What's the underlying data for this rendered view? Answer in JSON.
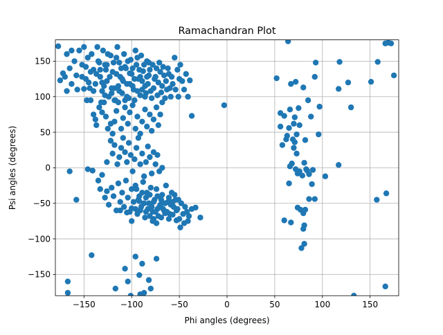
{
  "chart_data": {
    "type": "scatter",
    "title": "Ramachandran Plot",
    "xlabel": "Phi angles (degrees)",
    "ylabel": "Psi angles (degrees)",
    "xlim": [
      -180,
      180
    ],
    "ylim": [
      -180,
      180
    ],
    "xticks": [
      -150,
      -100,
      -50,
      0,
      50,
      100,
      150
    ],
    "yticks": [
      -150,
      -100,
      -50,
      0,
      50,
      100,
      150
    ],
    "grid": true,
    "marker_color": "#1f77b4",
    "points": [
      [
        -177,
        171
      ],
      [
        -175,
        123
      ],
      [
        -172,
        133
      ],
      [
        -170,
        128
      ],
      [
        -168,
        160
      ],
      [
        -165,
        140
      ],
      [
        -163,
        165
      ],
      [
        -160,
        150
      ],
      [
        -158,
        130
      ],
      [
        -155,
        165
      ],
      [
        -152,
        145
      ],
      [
        -150,
        170
      ],
      [
        -148,
        125
      ],
      [
        -146,
        155
      ],
      [
        -144,
        112
      ],
      [
        -142,
        160
      ],
      [
        -140,
        138
      ],
      [
        -138,
        118
      ],
      [
        -136,
        170
      ],
      [
        -135,
        150
      ],
      [
        -133,
        128
      ],
      [
        -131,
        108
      ],
      [
        -130,
        165
      ],
      [
        -128,
        145
      ],
      [
        -126,
        122
      ],
      [
        -124,
        100
      ],
      [
        -122,
        158
      ],
      [
        -120,
        135
      ],
      [
        -118,
        112
      ],
      [
        -117,
        95
      ],
      [
        -115,
        170
      ],
      [
        -113,
        148
      ],
      [
        -112,
        128
      ],
      [
        -110,
        105
      ],
      [
        -108,
        160
      ],
      [
        -106,
        140
      ],
      [
        -105,
        118
      ],
      [
        -103,
        98
      ],
      [
        -101,
        152
      ],
      [
        -100,
        132
      ],
      [
        -98,
        110
      ],
      [
        -96,
        165
      ],
      [
        -95,
        145
      ],
      [
        -93,
        125
      ],
      [
        -91,
        102
      ],
      [
        -90,
        158
      ],
      [
        -88,
        136
      ],
      [
        -86,
        115
      ],
      [
        -84,
        150
      ],
      [
        -82,
        130
      ],
      [
        -80,
        108
      ],
      [
        -78,
        145
      ],
      [
        -76,
        125
      ],
      [
        -74,
        140
      ],
      [
        -72,
        120
      ],
      [
        -70,
        135
      ],
      [
        -68,
        115
      ],
      [
        -66,
        130
      ],
      [
        -64,
        122
      ],
      [
        -62,
        140
      ],
      [
        -60,
        112
      ],
      [
        -58,
        128
      ],
      [
        -55,
        155
      ],
      [
        -52,
        138
      ],
      [
        -50,
        125
      ],
      [
        -168,
        108
      ],
      [
        -163,
        118
      ],
      [
        -157,
        110
      ],
      [
        -152,
        128
      ],
      [
        -148,
        142
      ],
      [
        -143,
        95
      ],
      [
        -140,
        108
      ],
      [
        -137,
        132
      ],
      [
        -134,
        148
      ],
      [
        -132,
        92
      ],
      [
        -129,
        115
      ],
      [
        -127,
        138
      ],
      [
        -125,
        160
      ],
      [
        -121,
        105
      ],
      [
        -119,
        148
      ],
      [
        -116,
        132
      ],
      [
        -114,
        115
      ],
      [
        -111,
        140
      ],
      [
        -109,
        122
      ],
      [
        -107,
        95
      ],
      [
        -104,
        150
      ],
      [
        -102,
        118
      ],
      [
        -99,
        140
      ],
      [
        -97,
        125
      ],
      [
        -94,
        108
      ],
      [
        -92,
        138
      ],
      [
        -89,
        122
      ],
      [
        -87,
        145
      ],
      [
        -85,
        105
      ],
      [
        -83,
        118
      ],
      [
        -81,
        138
      ],
      [
        -79,
        98
      ],
      [
        -77,
        112
      ],
      [
        -75,
        128
      ],
      [
        -73,
        102
      ],
      [
        -71,
        148
      ],
      [
        -69,
        106
      ],
      [
        -67,
        142
      ],
      [
        -65,
        98
      ],
      [
        -63,
        110
      ],
      [
        -61,
        132
      ],
      [
        -59,
        100
      ],
      [
        -57,
        118
      ],
      [
        -54,
        110
      ],
      [
        -51,
        100
      ],
      [
        -49,
        145
      ],
      [
        -47,
        122
      ],
      [
        -45,
        110
      ],
      [
        -43,
        132
      ],
      [
        -41,
        100
      ],
      [
        -39,
        123
      ],
      [
        -37,
        73
      ],
      [
        -133,
        138
      ],
      [
        -131,
        120
      ],
      [
        -128,
        102
      ],
      [
        -126,
        145
      ],
      [
        -123,
        128
      ],
      [
        -121,
        112
      ],
      [
        -118,
        95
      ],
      [
        -116,
        155
      ],
      [
        -113,
        108
      ],
      [
        -110,
        125
      ],
      [
        -107,
        142
      ],
      [
        -105,
        100
      ],
      [
        -102,
        133
      ],
      [
        -99,
        115
      ],
      [
        -97,
        95
      ],
      [
        -94,
        155
      ],
      [
        -91,
        128
      ],
      [
        -89,
        110
      ],
      [
        -86,
        100
      ],
      [
        -84,
        128
      ],
      [
        -82,
        148
      ],
      [
        -150,
        111
      ],
      [
        -147,
        95
      ],
      [
        -145,
        120
      ],
      [
        -143,
        135
      ],
      [
        -140,
        75
      ],
      [
        -138,
        68
      ],
      [
        -137,
        60
      ],
      [
        -134,
        85
      ],
      [
        -131,
        78
      ],
      [
        -129,
        92
      ],
      [
        -127,
        72
      ],
      [
        -125,
        55
      ],
      [
        -122,
        62
      ],
      [
        -120,
        48
      ],
      [
        -118,
        65
      ],
      [
        -116,
        80
      ],
      [
        -114,
        92
      ],
      [
        -111,
        55
      ],
      [
        -109,
        70
      ],
      [
        -107,
        85
      ],
      [
        -104,
        62
      ],
      [
        -102,
        78
      ],
      [
        -99,
        88
      ],
      [
        -96,
        55
      ],
      [
        -94,
        72
      ],
      [
        -91,
        48
      ],
      [
        -89,
        65
      ],
      [
        -86,
        82
      ],
      [
        -84,
        58
      ],
      [
        -81,
        75
      ],
      [
        -79,
        52
      ],
      [
        -77,
        68
      ],
      [
        -74,
        85
      ],
      [
        -72,
        60
      ],
      [
        -70,
        75
      ],
      [
        -68,
        92
      ],
      [
        -122,
        38
      ],
      [
        -120,
        20
      ],
      [
        -118,
        32
      ],
      [
        -115,
        5
      ],
      [
        -113,
        15
      ],
      [
        -111,
        28
      ],
      [
        -109,
        42
      ],
      [
        -107,
        22
      ],
      [
        -105,
        8
      ],
      [
        -103,
        35
      ],
      [
        -101,
        18
      ],
      [
        -99,
        -5
      ],
      [
        -97,
        12
      ],
      [
        -95,
        28
      ],
      [
        -93,
        42
      ],
      [
        -91,
        5
      ],
      [
        -89,
        20
      ],
      [
        -87,
        -12
      ],
      [
        -85,
        8
      ],
      [
        -83,
        30
      ],
      [
        -81,
        15
      ],
      [
        -79,
        -8
      ],
      [
        -77,
        22
      ],
      [
        -75,
        5
      ],
      [
        -73,
        18
      ],
      [
        -71,
        -5
      ],
      [
        -68,
        0
      ],
      [
        -126,
        8
      ],
      [
        -131,
        -10
      ],
      [
        -133,
        -30
      ],
      [
        -135,
        -18
      ],
      [
        -128,
        -42
      ],
      [
        -124,
        -52
      ],
      [
        -121,
        -28
      ],
      [
        -119,
        -40
      ],
      [
        -116,
        -60
      ],
      [
        -114,
        -22
      ],
      [
        -112,
        -48
      ],
      [
        -110,
        -35
      ],
      [
        -108,
        -55
      ],
      [
        -106,
        -18
      ],
      [
        -104,
        -42
      ],
      [
        -102,
        -62
      ],
      [
        -100,
        -30
      ],
      [
        -98,
        -48
      ],
      [
        -96,
        -25
      ],
      [
        -94,
        -65
      ],
      [
        -92,
        -40
      ],
      [
        -90,
        -55
      ],
      [
        -88,
        -20
      ],
      [
        -86,
        -70
      ],
      [
        -84,
        -35
      ],
      [
        -82,
        -50
      ],
      [
        -80,
        -28
      ],
      [
        -78,
        -62
      ],
      [
        -76,
        -45
      ],
      [
        -74,
        -30
      ],
      [
        -72,
        -68
      ],
      [
        -70,
        -52
      ],
      [
        -68,
        -38
      ],
      [
        -66,
        -60
      ],
      [
        -64,
        -25
      ],
      [
        -62,
        -48
      ],
      [
        -60,
        -65
      ],
      [
        -58,
        -35
      ],
      [
        -56,
        -55
      ],
      [
        -54,
        -45
      ],
      [
        -52,
        -58
      ],
      [
        -50,
        -72
      ],
      [
        -48,
        -50
      ],
      [
        -46,
        -65
      ],
      [
        -44,
        -55
      ],
      [
        -42,
        -62
      ],
      [
        -40,
        -68
      ],
      [
        -37,
        -58
      ],
      [
        -33,
        -56
      ],
      [
        -28,
        -70
      ],
      [
        -95,
        -30
      ],
      [
        -93,
        -45
      ],
      [
        -91,
        -60
      ],
      [
        -89,
        -35
      ],
      [
        -87,
        -50
      ],
      [
        -85,
        -42
      ],
      [
        -83,
        -58
      ],
      [
        -81,
        -38
      ],
      [
        -79,
        -55
      ],
      [
        -77,
        -48
      ],
      [
        -75,
        -62
      ],
      [
        -73,
        -40
      ],
      [
        -71,
        -55
      ],
      [
        -69,
        -45
      ],
      [
        -67,
        -58
      ],
      [
        -65,
        -50
      ],
      [
        -63,
        -62
      ],
      [
        -61,
        -42
      ],
      [
        -59,
        -52
      ],
      [
        -57,
        -48
      ],
      [
        -55,
        -38
      ],
      [
        -53,
        -60
      ],
      [
        -51,
        -45
      ],
      [
        -85,
        -62
      ],
      [
        -81,
        -68
      ],
      [
        -77,
        -72
      ],
      [
        -73,
        -58
      ],
      [
        -69,
        -70
      ],
      [
        -65,
        -64
      ],
      [
        -61,
        -72
      ],
      [
        -57,
        -66
      ],
      [
        -53,
        -74
      ],
      [
        -49,
        -84
      ],
      [
        -45,
        -78
      ],
      [
        -41,
        -75
      ],
      [
        -165,
        -5
      ],
      [
        -158,
        -45
      ],
      [
        -146,
        -2
      ],
      [
        -141,
        -4
      ],
      [
        -126,
        -33
      ],
      [
        -112,
        -60
      ],
      [
        -105,
        -63
      ],
      [
        -100,
        -57
      ],
      [
        -96,
        -58
      ],
      [
        -92,
        -47
      ],
      [
        -100,
        -75
      ],
      [
        -78,
        -75
      ],
      [
        -74,
        -78
      ],
      [
        -167,
        -160
      ],
      [
        -167,
        -176
      ],
      [
        -142,
        -123
      ],
      [
        -117,
        -170
      ],
      [
        -107,
        -142
      ],
      [
        -104,
        -160
      ],
      [
        -101,
        -180
      ],
      [
        -96,
        -125
      ],
      [
        -92,
        -151
      ],
      [
        -91,
        -178
      ],
      [
        -89,
        -135
      ],
      [
        -87,
        -176
      ],
      [
        -82,
        -158
      ],
      [
        -80,
        -170
      ],
      [
        -74,
        -128
      ],
      [
        -3,
        88
      ],
      [
        52,
        126
      ],
      [
        56,
        77
      ],
      [
        56,
        58
      ],
      [
        58,
        32
      ],
      [
        60,
        73
      ],
      [
        60,
        -74
      ],
      [
        62,
        40
      ],
      [
        63,
        45
      ],
      [
        64,
        178
      ],
      [
        65,
        56
      ],
      [
        67,
        118
      ],
      [
        66,
        82
      ],
      [
        66,
        2
      ],
      [
        65,
        -22
      ],
      [
        67,
        -77
      ],
      [
        68,
        6
      ],
      [
        69,
        40
      ],
      [
        70,
        62
      ],
      [
        70,
        28
      ],
      [
        71,
        36
      ],
      [
        71,
        71
      ],
      [
        72,
        -2
      ],
      [
        72,
        121
      ],
      [
        73,
        20
      ],
      [
        73,
        47
      ],
      [
        74,
        -56
      ],
      [
        74,
        -8
      ],
      [
        75,
        84
      ],
      [
        76,
        60
      ],
      [
        76,
        -5
      ],
      [
        77,
        -59
      ],
      [
        78,
        -113
      ],
      [
        79,
        -11
      ],
      [
        80,
        113
      ],
      [
        80,
        -86
      ],
      [
        81,
        -107
      ],
      [
        80,
        -64
      ],
      [
        81,
        -81
      ],
      [
        81,
        7
      ],
      [
        82,
        39
      ],
      [
        82,
        -59
      ],
      [
        83,
        -2
      ],
      [
        84,
        -4
      ],
      [
        85,
        95
      ],
      [
        86,
        -9
      ],
      [
        86,
        -44
      ],
      [
        88,
        72
      ],
      [
        89,
        -23
      ],
      [
        90,
        -3
      ],
      [
        92,
        128
      ],
      [
        92,
        -44
      ],
      [
        93,
        148
      ],
      [
        96,
        47
      ],
      [
        97,
        86
      ],
      [
        103,
        -12
      ],
      [
        118,
        149
      ],
      [
        117,
        111
      ],
      [
        117,
        4
      ],
      [
        127,
        120
      ],
      [
        130,
        85
      ],
      [
        133,
        -180
      ],
      [
        151,
        121
      ],
      [
        157,
        -45
      ],
      [
        158,
        149
      ],
      [
        166,
        175
      ],
      [
        169,
        176
      ],
      [
        172,
        175
      ],
      [
        175,
        130
      ],
      [
        166,
        -167
      ],
      [
        167,
        -36
      ]
    ]
  }
}
